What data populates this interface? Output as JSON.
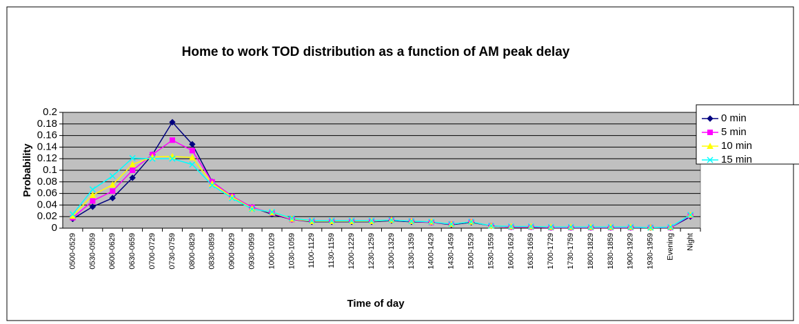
{
  "chart_data": {
    "type": "line",
    "title": "Home to work TOD distribution as a function of AM peak delay",
    "x_label": "Time of day",
    "y_label": "Probability",
    "categories": [
      "0500-0529",
      "0530-0559",
      "0600-0629",
      "0630-0659",
      "0700-0729",
      "0730-0759",
      "0800-0829",
      "0830-0859",
      "0900-0929",
      "0930-0959",
      "1000-1029",
      "1030-1059",
      "1100-1129",
      "1130-1159",
      "1200-1229",
      "1230-1259",
      "1300-1329",
      "1330-1359",
      "1400-1429",
      "1430-1459",
      "1500-1529",
      "1530-1559",
      "1600-1629",
      "1630-1659",
      "1700-1729",
      "1730-1759",
      "1800-1829",
      "1830-1859",
      "1900-1929",
      "1930-1959",
      "Evening",
      "Night"
    ],
    "series": [
      {
        "name": "0 min",
        "color": "#000080",
        "marker": "diamond",
        "values": [
          0.016,
          0.037,
          0.052,
          0.087,
          0.127,
          0.183,
          0.145,
          0.08,
          0.055,
          0.036,
          0.024,
          0.015,
          0.011,
          0.011,
          0.011,
          0.011,
          0.013,
          0.011,
          0.01,
          0.006,
          0.01,
          0.004,
          0.002,
          0.002,
          0.001,
          0.001,
          0.001,
          0.001,
          0.001,
          0.001,
          0.001,
          0.02
        ]
      },
      {
        "name": "5 min",
        "color": "#ff00ff",
        "marker": "square",
        "values": [
          0.018,
          0.047,
          0.064,
          0.1,
          0.127,
          0.152,
          0.134,
          0.08,
          0.055,
          0.036,
          0.026,
          0.015,
          0.012,
          0.012,
          0.012,
          0.012,
          0.014,
          0.012,
          0.01,
          0.007,
          0.011,
          0.004,
          0.002,
          0.002,
          0.001,
          0.001,
          0.001,
          0.001,
          0.001,
          0.001,
          0.001,
          0.022
        ]
      },
      {
        "name": "10 min",
        "color": "#ffff00",
        "marker": "triangle",
        "values": [
          0.021,
          0.057,
          0.075,
          0.11,
          0.123,
          0.124,
          0.122,
          0.077,
          0.054,
          0.034,
          0.027,
          0.016,
          0.012,
          0.012,
          0.012,
          0.012,
          0.014,
          0.012,
          0.011,
          0.007,
          0.011,
          0.004,
          0.003,
          0.003,
          0.002,
          0.002,
          0.002,
          0.002,
          0.002,
          0.001,
          0.002,
          0.023
        ]
      },
      {
        "name": "15 min",
        "color": "#00ffff",
        "marker": "x",
        "values": [
          0.024,
          0.067,
          0.09,
          0.121,
          0.12,
          0.12,
          0.11,
          0.074,
          0.052,
          0.033,
          0.028,
          0.017,
          0.013,
          0.013,
          0.013,
          0.013,
          0.014,
          0.012,
          0.011,
          0.007,
          0.011,
          0.004,
          0.003,
          0.003,
          0.002,
          0.002,
          0.002,
          0.002,
          0.002,
          0.001,
          0.002,
          0.023
        ]
      }
    ],
    "ylim": [
      0,
      0.2
    ],
    "yticks": [
      0,
      0.02,
      0.04,
      0.06,
      0.08,
      0.1,
      0.12,
      0.14,
      0.16,
      0.18,
      0.2
    ],
    "grid": true,
    "plot_background": "#c0c0c0",
    "legend": "right"
  }
}
